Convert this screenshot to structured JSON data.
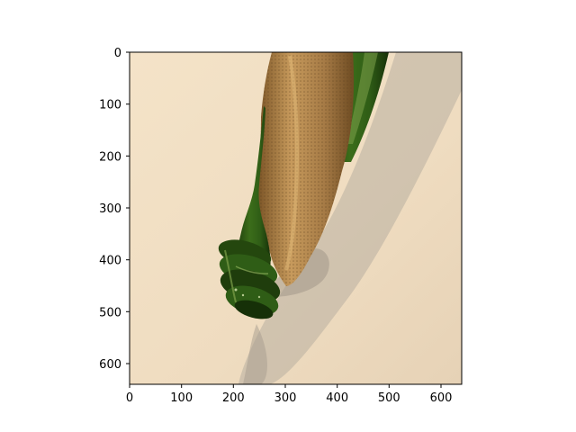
{
  "figure": {
    "x_ticks": [
      "0",
      "100",
      "200",
      "300",
      "400",
      "500",
      "600"
    ],
    "y_ticks": [
      "0",
      "100",
      "200",
      "300",
      "400",
      "500",
      "600"
    ],
    "image": {
      "subject": "champagne-bottle-neck",
      "colors": {
        "background": "#f1dfc4",
        "shadow": "#b8aea0",
        "glass": "#2f5d16",
        "glass_highlight": "#7ea04a",
        "foil": "#a57a45",
        "foil_highlight": "#c79a5c"
      }
    }
  }
}
